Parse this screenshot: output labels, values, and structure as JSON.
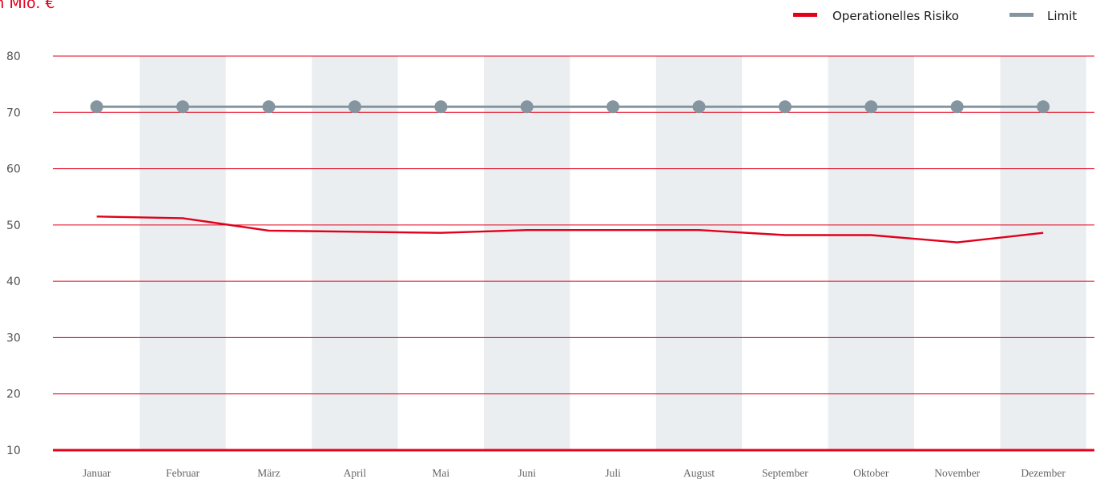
{
  "unit_label": "in Mio. €",
  "colors": {
    "risk": "#e2001a",
    "limit": "#8595a0",
    "band": "#ebeef1",
    "grid": "#e2001a"
  },
  "chart_data": {
    "type": "line",
    "title": "",
    "xlabel": "",
    "ylabel": "in Mio. €",
    "categories": [
      "Januar",
      "Februar",
      "März",
      "April",
      "Mai",
      "Juni",
      "Juli",
      "August",
      "September",
      "Oktober",
      "November",
      "Dezember"
    ],
    "yticks": [
      10,
      20,
      30,
      40,
      50,
      60,
      70,
      80
    ],
    "ylim": [
      10,
      80
    ],
    "grid": true,
    "legend": "top-right",
    "series": [
      {
        "name": "Operationelles Risiko",
        "color": "#e2001a",
        "markers": false,
        "values": [
          51.5,
          51.2,
          49.0,
          48.8,
          48.6,
          49.1,
          49.1,
          49.1,
          48.2,
          48.2,
          46.9,
          48.6
        ]
      },
      {
        "name": "Limit",
        "color": "#8595a0",
        "markers": true,
        "values": [
          71,
          71,
          71,
          71,
          71,
          71,
          71,
          71,
          71,
          71,
          71,
          71
        ]
      }
    ]
  }
}
